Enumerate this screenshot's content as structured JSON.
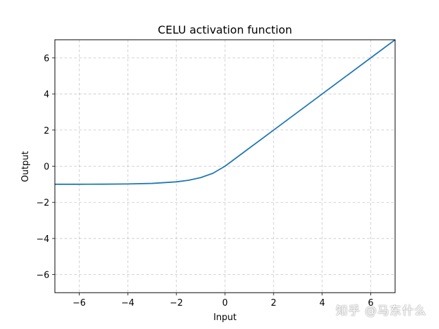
{
  "chart_data": {
    "type": "line",
    "title": "CELU activation function",
    "xlabel": "Input",
    "ylabel": "Output",
    "xlim": [
      -7,
      7
    ],
    "ylim": [
      -7,
      7
    ],
    "xticks": [
      -6,
      -4,
      -2,
      0,
      2,
      4,
      6
    ],
    "yticks": [
      -6,
      -4,
      -2,
      0,
      2,
      4,
      6
    ],
    "xtick_labels": [
      "−6",
      "−4",
      "−2",
      "0",
      "2",
      "4",
      "6"
    ],
    "ytick_labels": [
      "−6",
      "−4",
      "−2",
      "0",
      "2",
      "4",
      "6"
    ],
    "grid": true,
    "grid_style": "dashed",
    "series": [
      {
        "color": "#1f77b4",
        "x": [
          -7,
          -6,
          -5,
          -4,
          -3,
          -2,
          -1.5,
          -1,
          -0.5,
          0,
          1,
          2,
          3,
          4,
          5,
          6,
          7
        ],
        "values": [
          -0.999,
          -0.998,
          -0.993,
          -0.982,
          -0.95,
          -0.865,
          -0.777,
          -0.632,
          -0.393,
          0,
          1,
          2,
          3,
          4,
          5,
          6,
          7
        ]
      }
    ]
  },
  "watermark": "知乎 @马东什么"
}
